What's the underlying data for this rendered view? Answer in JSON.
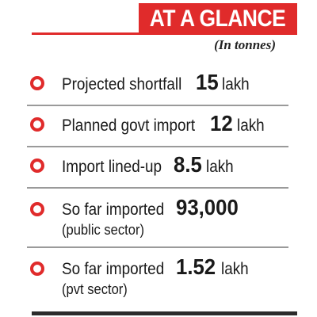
{
  "header": {
    "title": "AT A GLANCE",
    "unit_note": "(In tonnes)"
  },
  "items": [
    {
      "label": "Projected shortfall",
      "value": "15",
      "unit": "lakh",
      "sub": ""
    },
    {
      "label": "Planned govt import",
      "value": "12",
      "unit": "lakh",
      "sub": ""
    },
    {
      "label": "Import lined-up",
      "value": "8.5",
      "unit": "lakh",
      "sub": ""
    },
    {
      "label": "So far imported",
      "value": "93,000",
      "unit": "",
      "sub": "(public sector)"
    },
    {
      "label": "So far imported",
      "value": "1.52",
      "unit": "lakh",
      "sub": "(pvt sector)"
    }
  ],
  "colors": {
    "accent": "#e02b2b",
    "text": "#1a1a1a",
    "divider": "#9a9a9a"
  },
  "icons": {
    "bullet": "circle-bullet-icon"
  }
}
